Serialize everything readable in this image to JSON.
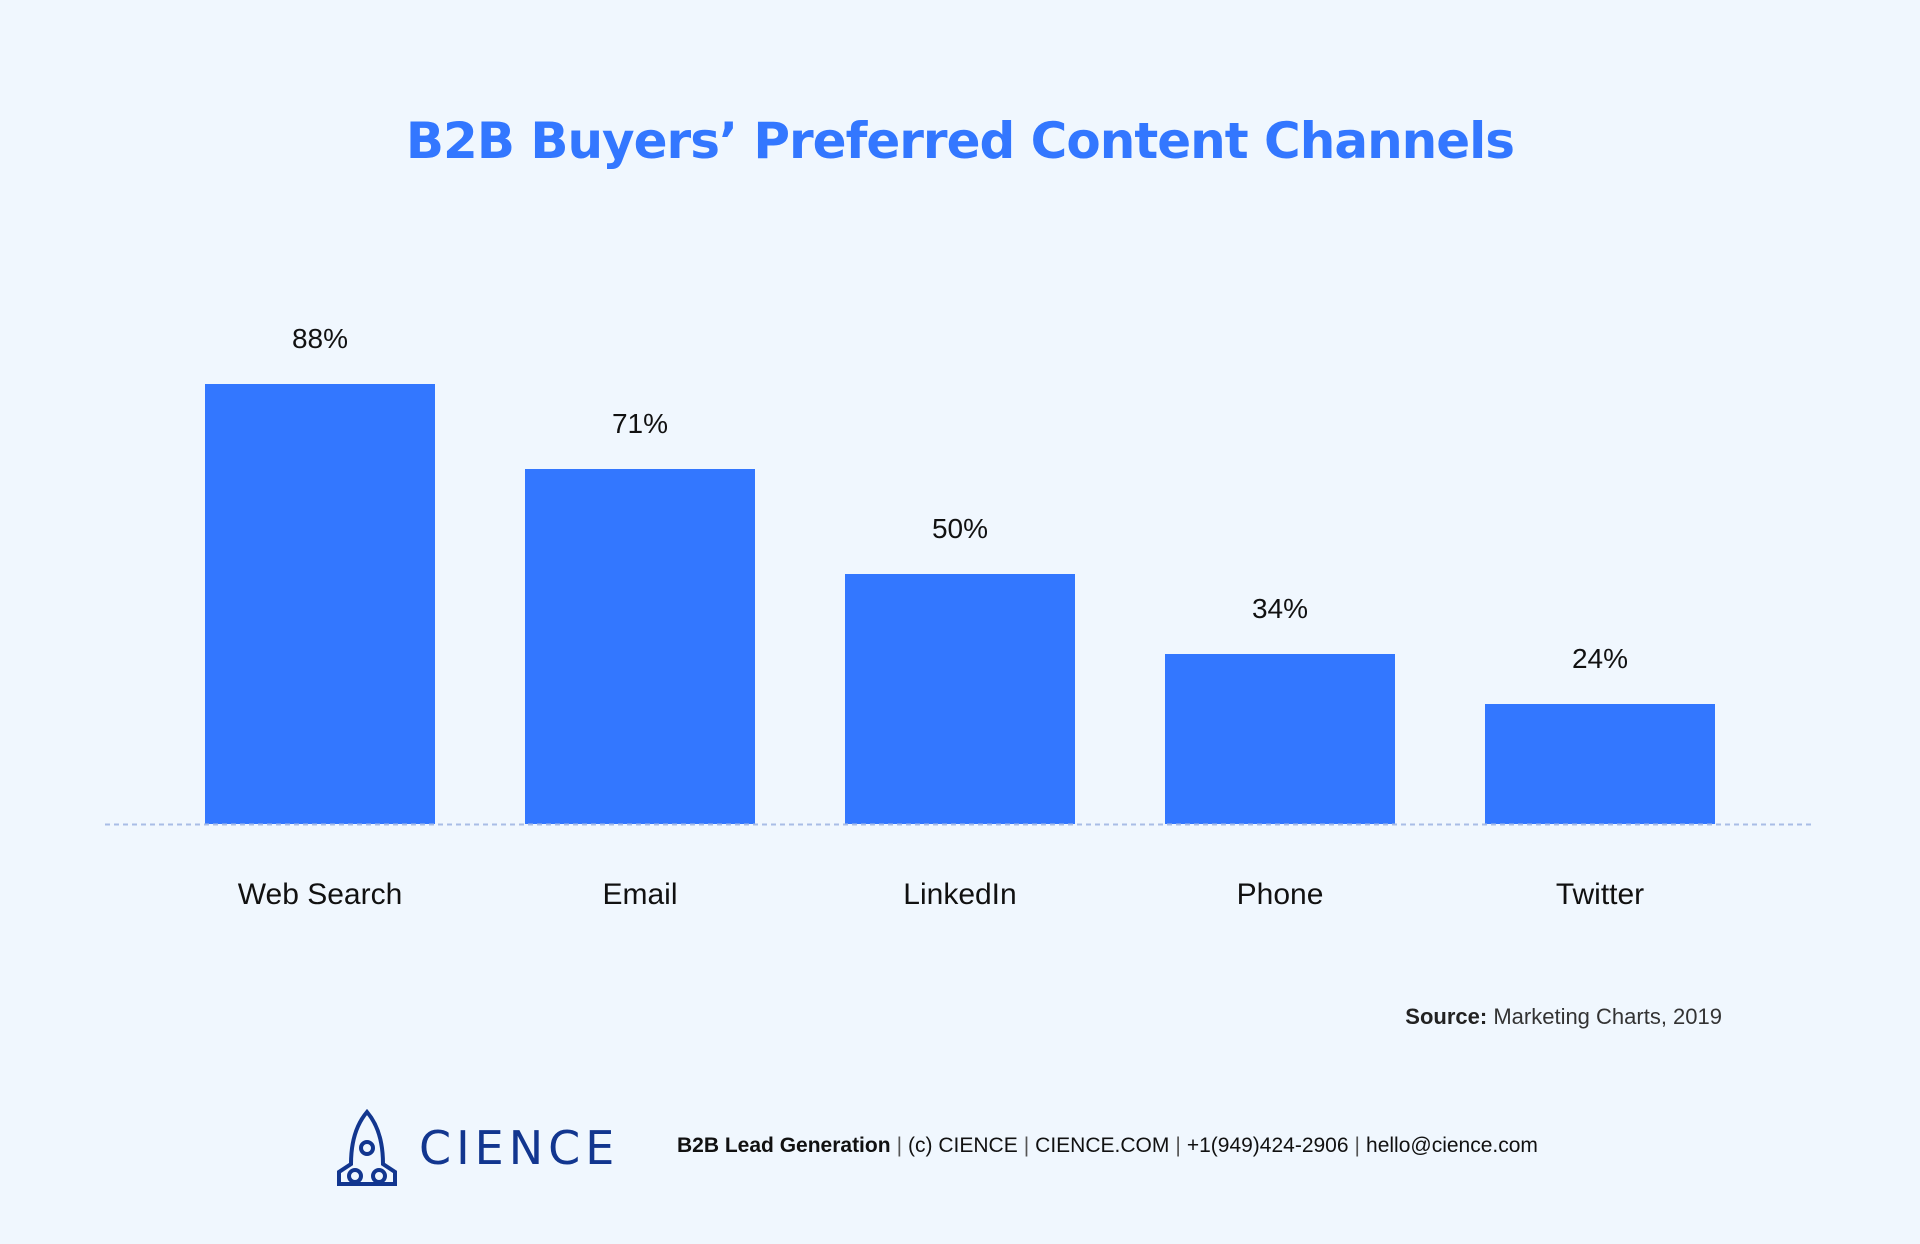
{
  "chart_data": {
    "type": "bar",
    "title": "B2B Buyers’ Preferred Content Channels",
    "categories": [
      "Web Search",
      "Email",
      "LinkedIn",
      "Phone",
      "Twitter"
    ],
    "values": [
      88,
      71,
      50,
      34,
      24
    ],
    "data_labels": [
      "88%",
      "71%",
      "50%",
      "34%",
      "24%"
    ],
    "xlabel": "",
    "ylabel": "",
    "ylim": [
      0,
      100
    ],
    "grid": false,
    "unit": "%",
    "bar_color": "#3377ff",
    "baseline_style": "dashed"
  },
  "source": {
    "label": "Source:",
    "text": "Marketing Charts, 2019"
  },
  "footer": {
    "logo_text": "CIENCE",
    "logo_icon": "rocket-icon",
    "tagline": "B2B Lead Generation",
    "items": [
      "(c) CIENCE",
      "CIENCE.COM",
      "+1(949)424-2906",
      "hello@cience.com"
    ],
    "separator": "|",
    "brand_color": "#12368f"
  }
}
